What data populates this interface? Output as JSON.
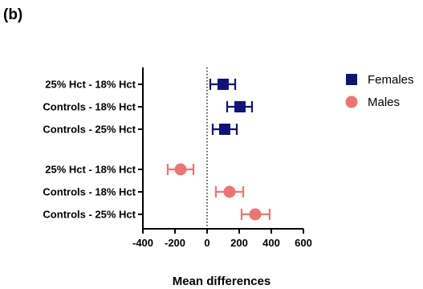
{
  "chart_data": {
    "type": "scatter",
    "panel_label": "(b)",
    "xlabel": "Mean differences",
    "ylabel": "",
    "xlim": [
      -400,
      600
    ],
    "x_ticks": [
      -400,
      -200,
      0,
      200,
      400,
      600
    ],
    "x_tick_labels": [
      "-400",
      "-200",
      "0",
      "200",
      "400",
      "600"
    ],
    "reference_line": {
      "x": 0,
      "style": "dotted"
    },
    "grid": false,
    "legend_position": "top-right",
    "series": [
      {
        "name": "Females",
        "marker": "square",
        "color": "#10127a",
        "points": [
          {
            "label": "25% Hct - 18% Hct",
            "mean": 100,
            "lower": 20,
            "upper": 175
          },
          {
            "label": "Controls - 18% Hct",
            "mean": 205,
            "lower": 125,
            "upper": 280
          },
          {
            "label": "Controls - 25% Hct",
            "mean": 110,
            "lower": 35,
            "upper": 185
          }
        ]
      },
      {
        "name": "Males",
        "marker": "circle",
        "color": "#f07373",
        "points": [
          {
            "label": "25% Hct - 18% Hct",
            "mean": -165,
            "lower": -245,
            "upper": -85
          },
          {
            "label": "Controls - 18% Hct",
            "mean": 140,
            "lower": 55,
            "upper": 225
          },
          {
            "label": "Controls - 25% Hct",
            "mean": 300,
            "lower": 215,
            "upper": 390
          }
        ]
      }
    ]
  }
}
